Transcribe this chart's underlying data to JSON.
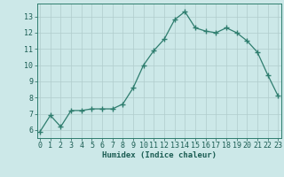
{
  "x": [
    0,
    1,
    2,
    3,
    4,
    5,
    6,
    7,
    8,
    9,
    10,
    11,
    12,
    13,
    14,
    15,
    16,
    17,
    18,
    19,
    20,
    21,
    22,
    23
  ],
  "y": [
    5.9,
    6.9,
    6.2,
    7.2,
    7.2,
    7.3,
    7.3,
    7.3,
    7.6,
    8.6,
    10.0,
    10.9,
    11.6,
    12.8,
    13.3,
    12.3,
    12.1,
    12.0,
    12.3,
    12.0,
    11.5,
    10.8,
    9.4,
    8.1
  ],
  "line_color": "#2e7d6e",
  "marker": "+",
  "marker_size": 4,
  "bg_color": "#cce8e8",
  "grid_color": "#b0cccc",
  "xlabel": "Humidex (Indice chaleur)",
  "ylim": [
    5.5,
    13.8
  ],
  "yticks": [
    6,
    7,
    8,
    9,
    10,
    11,
    12,
    13
  ],
  "xticks": [
    0,
    1,
    2,
    3,
    4,
    5,
    6,
    7,
    8,
    9,
    10,
    11,
    12,
    13,
    14,
    15,
    16,
    17,
    18,
    19,
    20,
    21,
    22,
    23
  ],
  "font_color": "#1a5c52",
  "label_fontsize": 6.5,
  "tick_fontsize": 6.0,
  "xlim": [
    -0.3,
    23.3
  ]
}
